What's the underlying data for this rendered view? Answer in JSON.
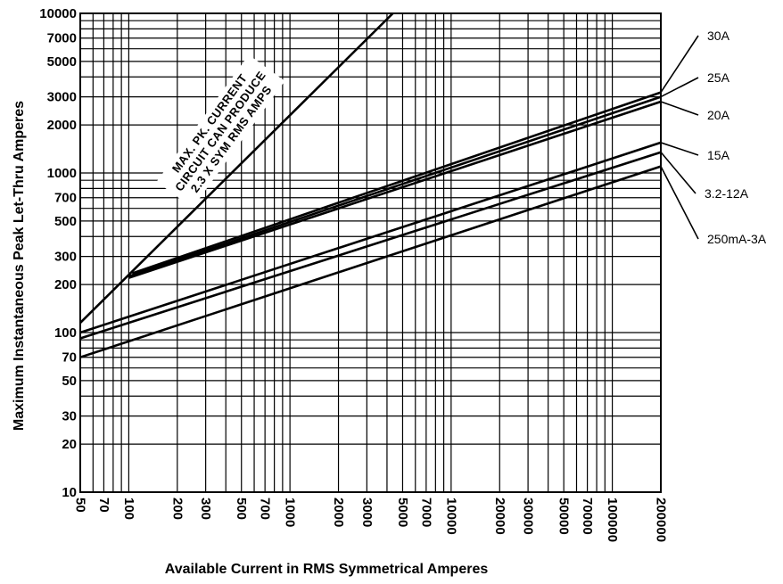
{
  "chart_data": {
    "type": "line",
    "title": "",
    "xlabel": "Available Current in RMS Symmetrical Amperes",
    "ylabel": "Maximum Instantaneous Peak Let-Thru Amperes",
    "x_scale": "log",
    "y_scale": "log",
    "xlim": [
      50,
      200000
    ],
    "ylim": [
      10,
      10000
    ],
    "x_ticks": [
      50,
      70,
      100,
      200,
      300,
      500,
      700,
      1000,
      2000,
      3000,
      5000,
      7000,
      10000,
      20000,
      30000,
      50000,
      70000,
      100000,
      200000
    ],
    "y_ticks": [
      10,
      20,
      30,
      50,
      70,
      100,
      200,
      300,
      500,
      700,
      1000,
      2000,
      3000,
      5000,
      7000,
      10000
    ],
    "grid": true,
    "legend": "right",
    "annotation": [
      "MAX. PK. CURRENT",
      "CIRCUIT CAN PRODUCE",
      "2.3 X SYM RMS AMPS"
    ],
    "series": [
      {
        "name": "30A",
        "x": [
          105,
          200000
        ],
        "y": [
          235,
          3200
        ]
      },
      {
        "name": "25A",
        "x": [
          100,
          200000
        ],
        "y": [
          225,
          3000
        ]
      },
      {
        "name": "20A",
        "x": [
          100,
          200000
        ],
        "y": [
          220,
          2800
        ]
      },
      {
        "name": "15A",
        "x": [
          50,
          200000
        ],
        "y": [
          100,
          1550
        ]
      },
      {
        "name": "3.2-12A",
        "x": [
          50,
          200000
        ],
        "y": [
          92,
          1350
        ]
      },
      {
        "name": "250mA-3A",
        "x": [
          50,
          200000
        ],
        "y": [
          70,
          1100
        ]
      },
      {
        "name": "",
        "x": [
          50,
          4350
        ],
        "y": [
          115,
          10000
        ]
      }
    ]
  }
}
